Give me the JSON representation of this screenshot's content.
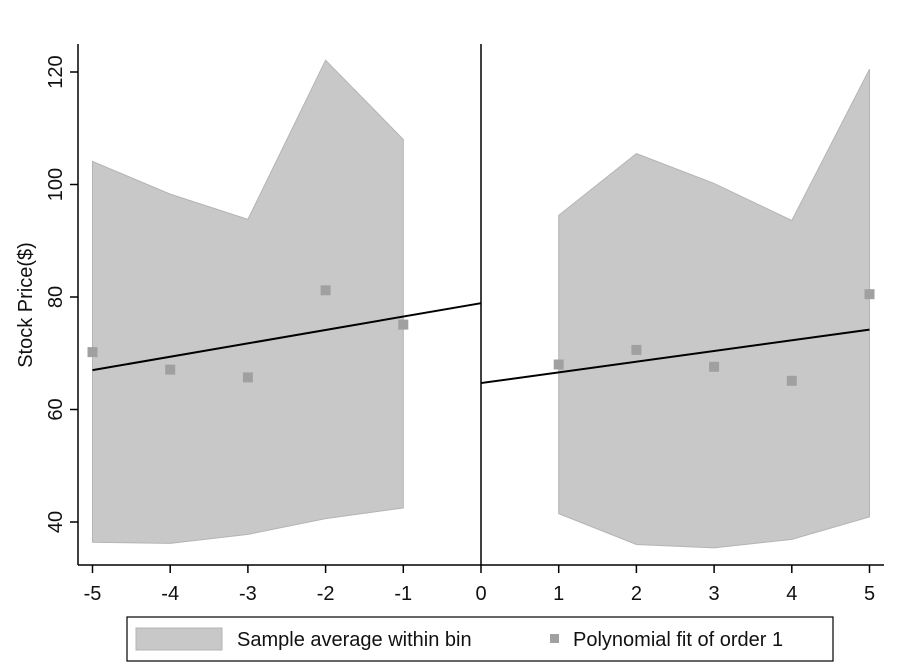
{
  "chart_data": {
    "type": "scatter",
    "title": "",
    "xlabel": "",
    "ylabel": "Stock Price($)",
    "xlim": [
      -5,
      5
    ],
    "ylim": [
      33,
      125
    ],
    "xticks": [
      "-5",
      "-4",
      "-3",
      "-2",
      "-1",
      "0",
      "1",
      "2",
      "3",
      "4",
      "5"
    ],
    "yticks": [
      "40",
      "60",
      "80",
      "100",
      "120"
    ],
    "cutoff": 0,
    "grid": false,
    "legend_position": "bottom",
    "legend": {
      "band_label": "Sample average within bin",
      "points_label": "Polynomial fit of order 1"
    },
    "colors": {
      "band": "#c8c8c8",
      "band_stroke": "#b4b4b4",
      "points": "#a0a0a0",
      "line": "#000000",
      "axis": "#000000"
    },
    "bins": {
      "x": [
        -5,
        -4,
        -3,
        -2,
        -1,
        1,
        2,
        3,
        4,
        5
      ],
      "y": [
        70.2,
        67.1,
        65.7,
        81.2,
        75.1,
        68.0,
        70.6,
        67.6,
        65.1,
        80.5
      ]
    },
    "band": [
      {
        "x": [
          -5,
          -4,
          -3,
          -2,
          -1
        ],
        "upper": [
          104.1,
          98.3,
          93.8,
          122.1,
          108.0
        ],
        "lower": [
          36.4,
          36.2,
          37.8,
          40.6,
          42.5
        ]
      },
      {
        "x": [
          1,
          2,
          3,
          4,
          5
        ],
        "upper": [
          94.5,
          105.5,
          100.2,
          93.6,
          120.5
        ],
        "lower": [
          41.5,
          36.0,
          35.4,
          36.9,
          40.9
        ]
      }
    ],
    "fit": [
      {
        "x": [
          -5,
          0
        ],
        "y": [
          67.0,
          78.9
        ]
      },
      {
        "x": [
          0,
          5
        ],
        "y": [
          64.7,
          74.2
        ]
      }
    ]
  }
}
